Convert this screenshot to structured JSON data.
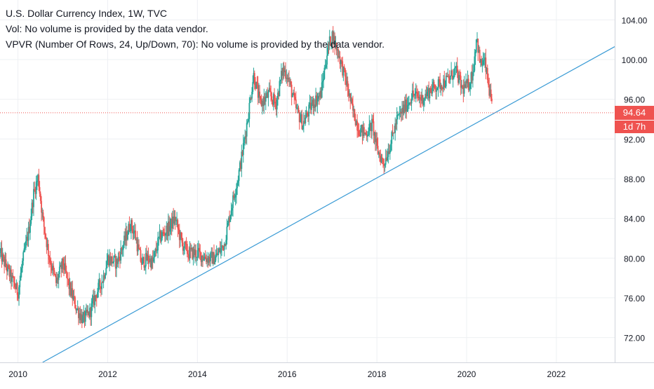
{
  "header": {
    "title": "U.S. Dollar Currency Index, 1W, TVC",
    "volume_note": "Vol: No volume is provided by the data vendor.",
    "vpvr_note": "VPVR (Number Of Rows, 24, Up/Down, 70): No volume is provided by the data vendor."
  },
  "price_scale": {
    "last_price": "94.64",
    "countdown": "1d 7h"
  },
  "colors": {
    "up": "#26a69a",
    "down": "#ef5350",
    "trendline": "#3a9bd5",
    "price_line": "#ef5350",
    "grid": "#eef0f3",
    "axis_text": "#131722"
  },
  "chart_data": {
    "type": "line",
    "subtype": "candlestick-weekly",
    "title": "U.S. Dollar Currency Index, 1W, TVC",
    "xlabel": "",
    "ylabel": "",
    "x_ticks": [
      "2010",
      "2012",
      "2014",
      "2016",
      "2018",
      "2020",
      "2022"
    ],
    "y_ticks": [
      "72.00",
      "76.00",
      "80.00",
      "84.00",
      "88.00",
      "92.00",
      "96.00",
      "100.00",
      "104.00"
    ],
    "xlim": [
      2009.6,
      2023.3
    ],
    "ylim": [
      69.5,
      106
    ],
    "grid": true,
    "last_price": 94.64,
    "series": [
      {
        "kind": "price-path",
        "points": [
          [
            2009.6,
            80.5
          ],
          [
            2009.8,
            78.5
          ],
          [
            2010.0,
            76.5
          ],
          [
            2010.1,
            79.5
          ],
          [
            2010.25,
            83.0
          ],
          [
            2010.35,
            86.5
          ],
          [
            2010.45,
            88.2
          ],
          [
            2010.55,
            84.0
          ],
          [
            2010.7,
            80.0
          ],
          [
            2010.85,
            77.5
          ],
          [
            2011.0,
            79.5
          ],
          [
            2011.15,
            77.0
          ],
          [
            2011.3,
            75.0
          ],
          [
            2011.45,
            73.8
          ],
          [
            2011.6,
            74.5
          ],
          [
            2011.75,
            76.5
          ],
          [
            2011.9,
            78.0
          ],
          [
            2012.0,
            80.0
          ],
          [
            2012.2,
            79.5
          ],
          [
            2012.4,
            82.0
          ],
          [
            2012.5,
            83.5
          ],
          [
            2012.6,
            82.5
          ],
          [
            2012.75,
            79.5
          ],
          [
            2012.9,
            80.0
          ],
          [
            2013.0,
            79.5
          ],
          [
            2013.15,
            82.0
          ],
          [
            2013.35,
            83.0
          ],
          [
            2013.5,
            84.0
          ],
          [
            2013.65,
            81.5
          ],
          [
            2013.8,
            80.5
          ],
          [
            2014.0,
            80.5
          ],
          [
            2014.2,
            80.0
          ],
          [
            2014.4,
            80.0
          ],
          [
            2014.6,
            81.5
          ],
          [
            2014.75,
            85.0
          ],
          [
            2014.9,
            88.0
          ],
          [
            2015.0,
            90.5
          ],
          [
            2015.15,
            95.0
          ],
          [
            2015.25,
            98.5
          ],
          [
            2015.4,
            95.5
          ],
          [
            2015.6,
            96.5
          ],
          [
            2015.75,
            95.5
          ],
          [
            2015.9,
            99.0
          ],
          [
            2016.0,
            98.5
          ],
          [
            2016.2,
            95.0
          ],
          [
            2016.35,
            93.5
          ],
          [
            2016.55,
            95.5
          ],
          [
            2016.75,
            96.5
          ],
          [
            2016.9,
            101.0
          ],
          [
            2017.0,
            102.5
          ],
          [
            2017.15,
            100.5
          ],
          [
            2017.3,
            98.0
          ],
          [
            2017.45,
            95.0
          ],
          [
            2017.6,
            93.0
          ],
          [
            2017.75,
            92.5
          ],
          [
            2017.9,
            93.5
          ],
          [
            2018.0,
            91.0
          ],
          [
            2018.15,
            89.5
          ],
          [
            2018.3,
            91.5
          ],
          [
            2018.45,
            94.0
          ],
          [
            2018.6,
            95.0
          ],
          [
            2018.8,
            96.5
          ],
          [
            2019.0,
            96.0
          ],
          [
            2019.2,
            97.0
          ],
          [
            2019.4,
            97.5
          ],
          [
            2019.6,
            98.0
          ],
          [
            2019.75,
            99.0
          ],
          [
            2019.9,
            97.0
          ],
          [
            2020.05,
            97.5
          ],
          [
            2020.15,
            99.0
          ],
          [
            2020.22,
            102.5
          ],
          [
            2020.3,
            99.5
          ],
          [
            2020.4,
            99.8
          ],
          [
            2020.5,
            97.0
          ],
          [
            2020.58,
            94.64
          ]
        ]
      }
    ],
    "trendline": {
      "from": [
        2010.55,
        69.5
      ],
      "to": [
        2023.3,
        101.3
      ]
    }
  }
}
